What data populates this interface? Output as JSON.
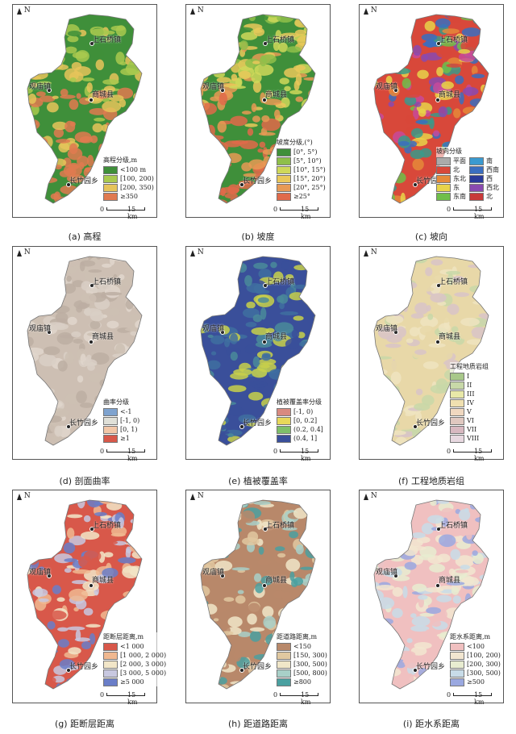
{
  "north_label": "N",
  "scale_label": "15 km",
  "scale_zero": "0",
  "places": {
    "shangshiqiao": "上石桥镇",
    "guanmiao": "观庙镇",
    "shangcheng": "商城县",
    "changzhu": "长竹园乡"
  },
  "panels": [
    {
      "id": "a",
      "caption": "(a) 高程",
      "legend_title": "高程分级,m",
      "palette": [
        "#3f8f3a",
        "#a9c94f",
        "#e6c45a",
        "#e07a50"
      ],
      "legend": [
        {
          "label": "<100 m",
          "color": "#3f8f3a"
        },
        {
          "label": "[100, 200)",
          "color": "#a9c94f"
        },
        {
          "label": "[200, 350)",
          "color": "#e6c45a"
        },
        {
          "label": "≥350",
          "color": "#e07a50"
        }
      ]
    },
    {
      "id": "b",
      "caption": "(b) 坡度",
      "legend_title": "坡度分级,(°)",
      "palette": [
        "#3f8f3a",
        "#8fbf4a",
        "#cfd85a",
        "#e9c85a",
        "#e79a55",
        "#e06a4a"
      ],
      "legend": [
        {
          "label": "[0°, 5°)",
          "color": "#3f8f3a"
        },
        {
          "label": "[5°, 10°)",
          "color": "#8fbf4a"
        },
        {
          "label": "[10°, 15°)",
          "color": "#cfd85a"
        },
        {
          "label": "[15°, 20°)",
          "color": "#e9c85a"
        },
        {
          "label": "[20°, 25°)",
          "color": "#e79a55"
        },
        {
          "label": "≥25°",
          "color": "#e06a4a"
        }
      ]
    },
    {
      "id": "c",
      "caption": "(c) 坡向",
      "legend_title": "坡向分级",
      "palette": [
        "#d8483a",
        "#e58a3a",
        "#e8d44a",
        "#6fbf4a",
        "#3a9a8a",
        "#3a6ec0",
        "#8a4ab0",
        "#c84a9a"
      ],
      "legend_two_col": true,
      "legend": [
        {
          "label": "平面",
          "color": "#aaaaaa"
        },
        {
          "label": "南",
          "color": "#3a9ad0"
        },
        {
          "label": "北",
          "color": "#d8483a"
        },
        {
          "label": "西南",
          "color": "#3a6ec0"
        },
        {
          "label": "东北",
          "color": "#e58a3a"
        },
        {
          "label": "西",
          "color": "#2a3a9a"
        },
        {
          "label": "东",
          "color": "#e8d44a"
        },
        {
          "label": "西北",
          "color": "#8a4ab0"
        },
        {
          "label": "东南",
          "color": "#6fbf4a"
        },
        {
          "label": "北",
          "color": "#c83a3a"
        }
      ]
    },
    {
      "id": "d",
      "caption": "(d) 剖面曲率",
      "legend_title": "曲率分级",
      "palette": [
        "#cdbfb3",
        "#d9cfc5",
        "#bcaea2",
        "#e0d6cc"
      ],
      "legend": [
        {
          "label": "<-1",
          "color": "#7fa3cf"
        },
        {
          "label": "[-1, 0)",
          "color": "#e0e0d8"
        },
        {
          "label": "[0, 1)",
          "color": "#f2c7a8"
        },
        {
          "label": "≥1",
          "color": "#d8584a"
        }
      ]
    },
    {
      "id": "e",
      "caption": "(e) 植被覆盖率",
      "legend_title": "植被覆盖率分级",
      "palette": [
        "#3a4f9a",
        "#4a8a9a",
        "#c8d04a",
        "#3f6fa0"
      ],
      "legend": [
        {
          "label": "[-1, 0)",
          "color": "#d88a80"
        },
        {
          "label": "[0, 0.2]",
          "color": "#e8d85a"
        },
        {
          "label": "(0.2, 0.4]",
          "color": "#7fbf6a"
        },
        {
          "label": "(0.4, 1]",
          "color": "#3a4f9a"
        }
      ]
    },
    {
      "id": "f",
      "caption": "(f) 工程地质岩组",
      "legend_title": "工程地质岩组",
      "palette": [
        "#e8d8a8",
        "#d8c4c8",
        "#c8d8a8",
        "#efe4c0"
      ],
      "legend": [
        {
          "label": "I",
          "color": "#a8c88a"
        },
        {
          "label": "II",
          "color": "#c8d8a8"
        },
        {
          "label": "III",
          "color": "#e8e8a8"
        },
        {
          "label": "IV",
          "color": "#f0e0b0"
        },
        {
          "label": "V",
          "color": "#f0d8c0"
        },
        {
          "label": "VI",
          "color": "#e0c8c0"
        },
        {
          "label": "VII",
          "color": "#d8b8c0"
        },
        {
          "label": "VIII",
          "color": "#e8d8e0"
        }
      ]
    },
    {
      "id": "g",
      "caption": "(g) 距断层距离",
      "legend_title": "距断层距离,m",
      "palette": [
        "#d8584a",
        "#f0b890",
        "#f2e6c8",
        "#c8c8e0",
        "#6a7ec8"
      ],
      "legend": [
        {
          "label": "<1 000",
          "color": "#d8584a"
        },
        {
          "label": "[1 000, 2 000)",
          "color": "#f0b890"
        },
        {
          "label": "[2 000, 3 000)",
          "color": "#f2e6c8"
        },
        {
          "label": "[3 000, 5 000)",
          "color": "#c8c8e0"
        },
        {
          "label": "≥5 000",
          "color": "#6a7ec8"
        }
      ]
    },
    {
      "id": "h",
      "caption": "(h) 距道路距离",
      "legend_title": "距道路距离,m",
      "palette": [
        "#b8886a",
        "#e0c8a0",
        "#f0e6c8",
        "#a8d0c8",
        "#4aa0a0"
      ],
      "legend": [
        {
          "label": "<150",
          "color": "#b8886a"
        },
        {
          "label": "[150, 300)",
          "color": "#e0c8a0"
        },
        {
          "label": "[300, 500)",
          "color": "#f0e6c8"
        },
        {
          "label": "[500, 800)",
          "color": "#a8d0c8"
        },
        {
          "label": "≥800",
          "color": "#4aa0a0"
        }
      ]
    },
    {
      "id": "i",
      "caption": "(i) 距水系距离",
      "legend_title": "距水系距离,m",
      "palette": [
        "#f0c0c0",
        "#f2e6d0",
        "#e8ecd0",
        "#c8dce8",
        "#9aa8e0"
      ],
      "legend": [
        {
          "label": "<100",
          "color": "#f0c0c0"
        },
        {
          "label": "[100, 200)",
          "color": "#f2e6d0"
        },
        {
          "label": "[200, 300)",
          "color": "#e8ecd0"
        },
        {
          "label": "[300, 500)",
          "color": "#c8dce8"
        },
        {
          "label": "≥500",
          "color": "#9aa8e0"
        }
      ]
    }
  ]
}
